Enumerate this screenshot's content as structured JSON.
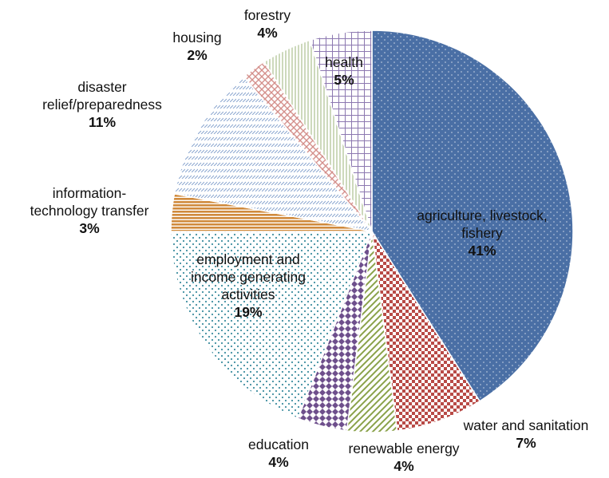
{
  "chart_data": {
    "type": "pie",
    "title": "",
    "start": "12 o'clock, clockwise",
    "slices": [
      {
        "key": "agri",
        "lines": [
          "agriculture, livestock,",
          "fishery"
        ],
        "pct_label": "41%",
        "value": 41,
        "color": "#4a6fa5",
        "pattern": "dots-dense"
      },
      {
        "key": "water",
        "lines": [
          "water and sanitation"
        ],
        "pct_label": "7%",
        "value": 7,
        "color": "#b84a46",
        "pattern": "checker"
      },
      {
        "key": "renew",
        "lines": [
          "renewable energy"
        ],
        "pct_label": "4%",
        "value": 4,
        "color": "#8aa24a",
        "pattern": "diagonal"
      },
      {
        "key": "edu",
        "lines": [
          "education"
        ],
        "pct_label": "4%",
        "value": 4,
        "color": "#6e4f8c",
        "pattern": "diamond"
      },
      {
        "key": "employ",
        "lines": [
          "employment and",
          "income generating",
          "activities"
        ],
        "pct_label": "19%",
        "value": 19,
        "color": "#3f8ea0",
        "pattern": "dots-light"
      },
      {
        "key": "info",
        "lines": [
          "information-",
          "technology transfer"
        ],
        "pct_label": "3%",
        "value": 3,
        "color": "#d08a3c",
        "pattern": "horizontal"
      },
      {
        "key": "disas",
        "lines": [
          "disaster",
          "relief/preparedness"
        ],
        "pct_label": "11%",
        "value": 11,
        "color": "#8aa6cf",
        "pattern": "dashes"
      },
      {
        "key": "house",
        "lines": [
          "housing"
        ],
        "pct_label": "2%",
        "value": 2,
        "color": "#d48f8b",
        "pattern": "crosshatch"
      },
      {
        "key": "forest",
        "lines": [
          "forestry"
        ],
        "pct_label": "4%",
        "value": 4,
        "color": "#9bb37a",
        "pattern": "vertical"
      },
      {
        "key": "health",
        "lines": [
          "health"
        ],
        "pct_label": "5%",
        "value": 5,
        "color": "#8c78b0",
        "pattern": "grid"
      }
    ]
  }
}
